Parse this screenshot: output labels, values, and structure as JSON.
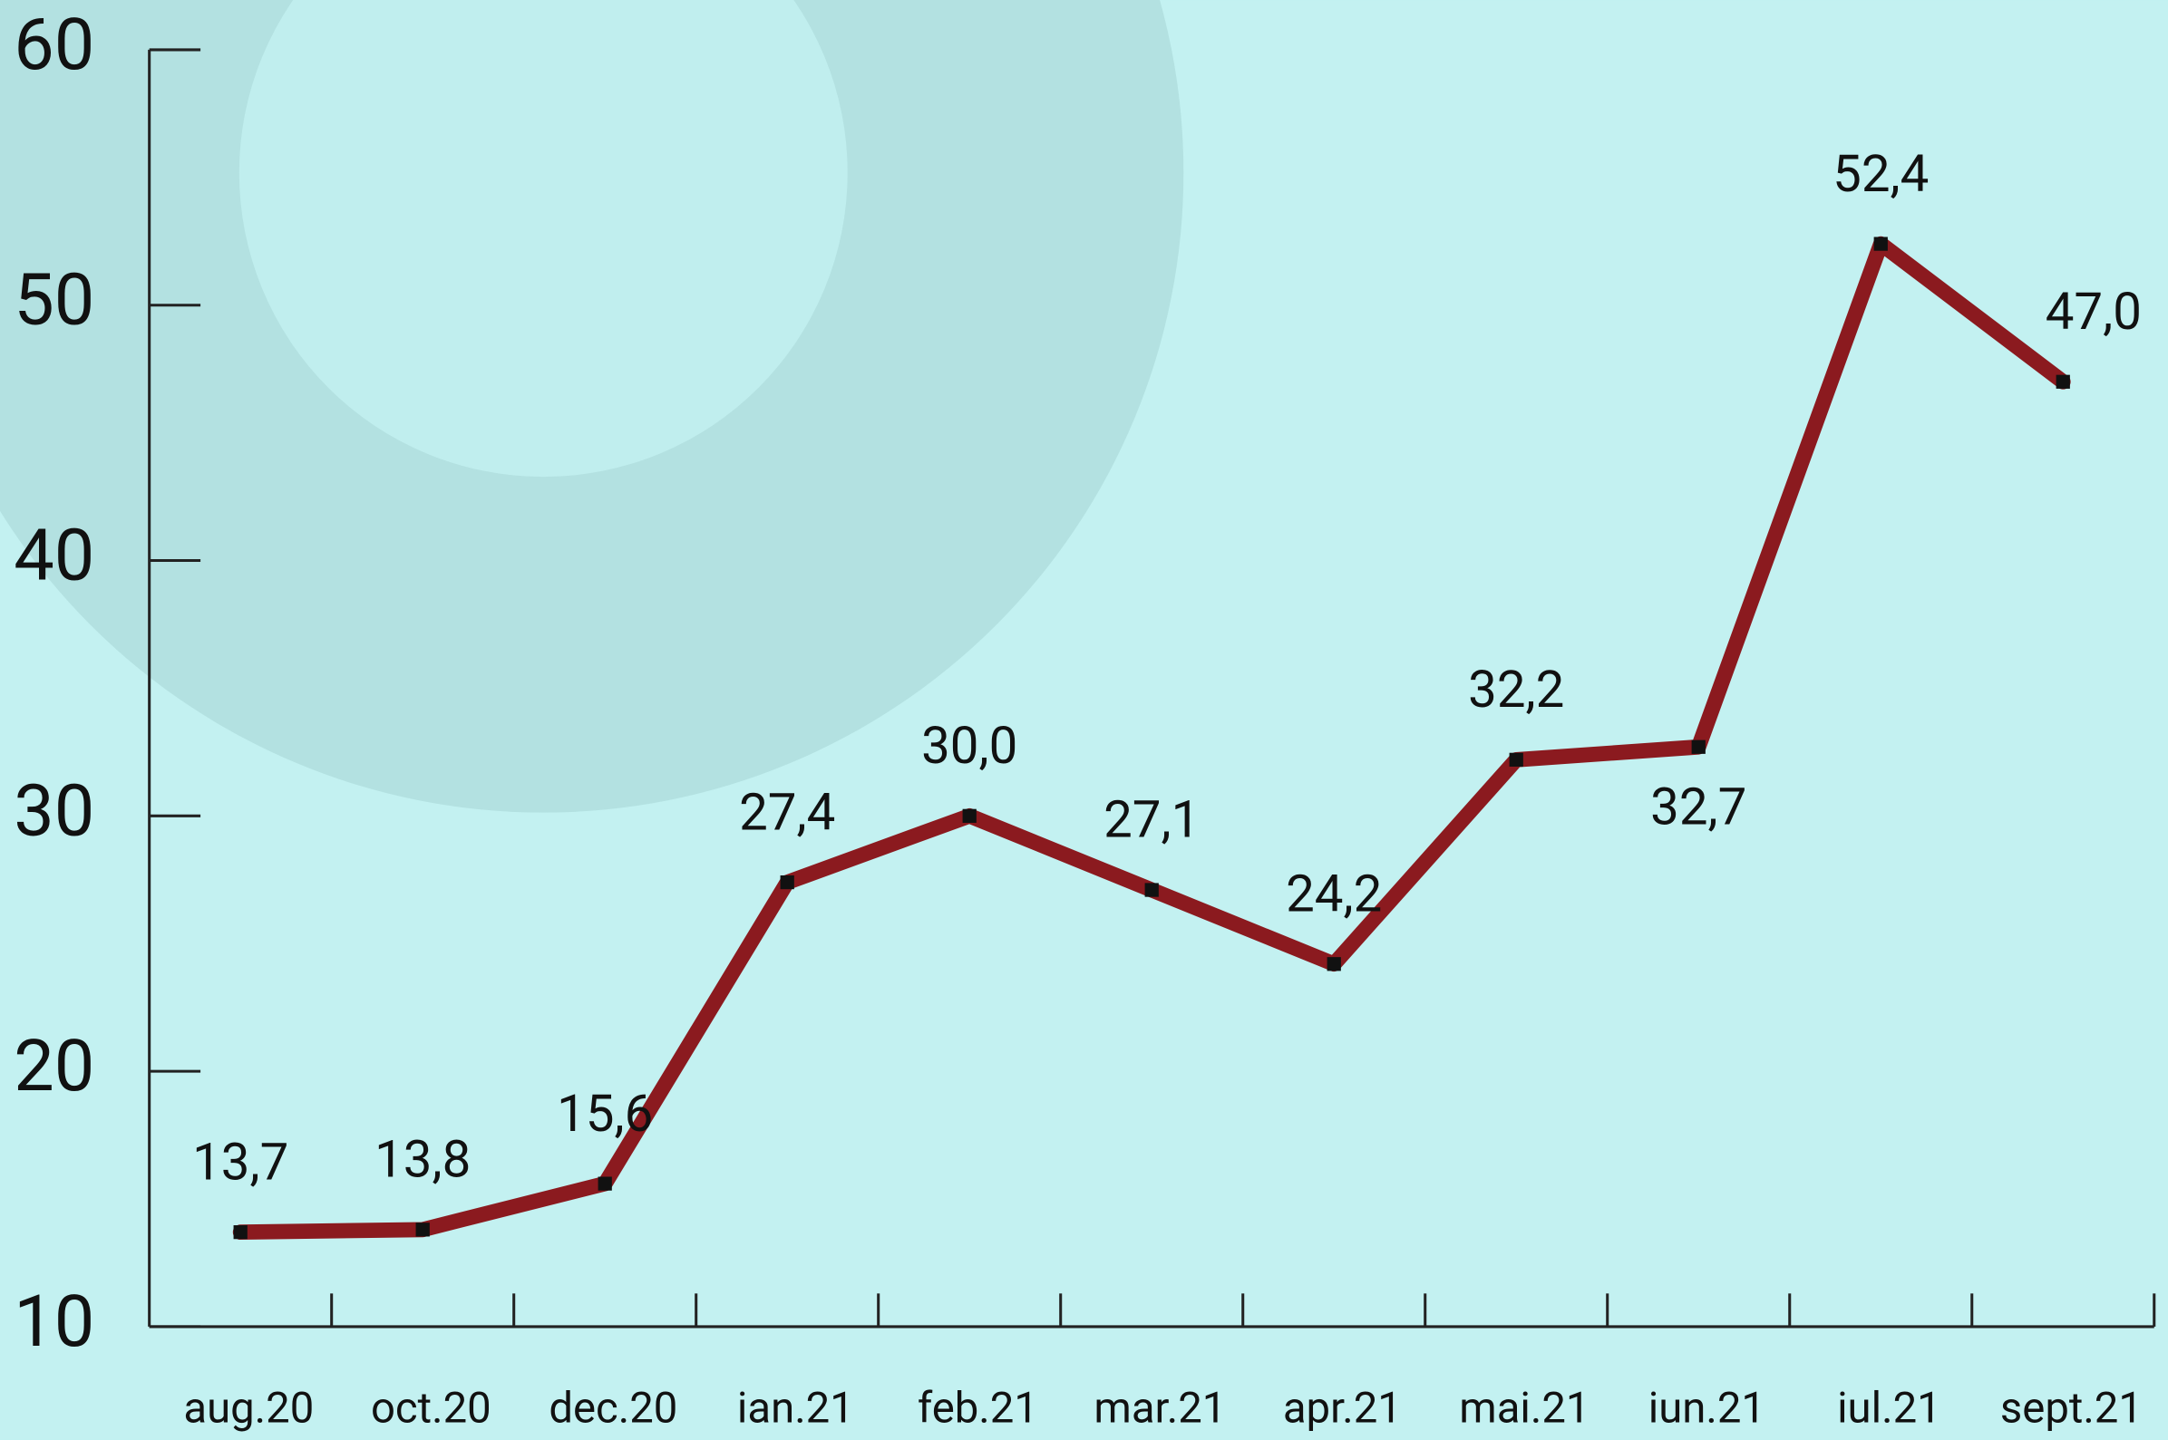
{
  "chart_data": {
    "type": "line",
    "categories": [
      "aug.20",
      "oct.20",
      "dec.20",
      "ian.21",
      "feb.21",
      "mar.21",
      "apr.21",
      "mai.21",
      "iun.21",
      "iul.21",
      "sept.21"
    ],
    "values": [
      13.7,
      13.8,
      15.6,
      27.4,
      30.0,
      27.1,
      24.2,
      32.2,
      32.7,
      52.4,
      47.0
    ],
    "value_labels": [
      "13,7",
      "13,8",
      "15,6",
      "27,4",
      "30,0",
      "27,1",
      "24,2",
      "32,2",
      "32,7",
      "52,4",
      "47,0"
    ],
    "color": "#8b1a1f",
    "ylim": [
      10,
      60
    ],
    "yticks": [
      10,
      20,
      30,
      40,
      50,
      60
    ]
  }
}
